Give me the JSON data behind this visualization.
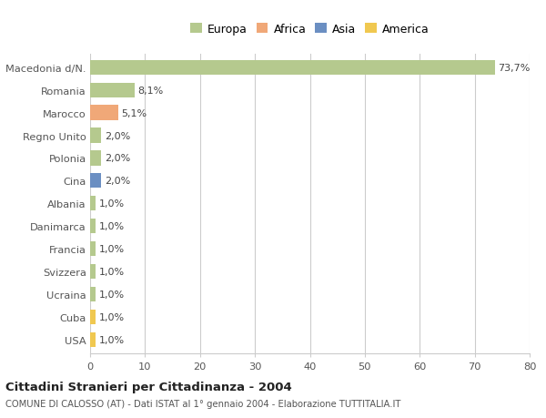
{
  "countries": [
    "Macedonia d/N.",
    "Romania",
    "Marocco",
    "Regno Unito",
    "Polonia",
    "Cina",
    "Albania",
    "Danimarca",
    "Francia",
    "Svizzera",
    "Ucraina",
    "Cuba",
    "USA"
  ],
  "values": [
    73.7,
    8.1,
    5.1,
    2.0,
    2.0,
    2.0,
    1.0,
    1.0,
    1.0,
    1.0,
    1.0,
    1.0,
    1.0
  ],
  "labels": [
    "73,7%",
    "8,1%",
    "5,1%",
    "2,0%",
    "2,0%",
    "2,0%",
    "1,0%",
    "1,0%",
    "1,0%",
    "1,0%",
    "1,0%",
    "1,0%",
    "1,0%"
  ],
  "colors": [
    "#b5c98e",
    "#b5c98e",
    "#f0a878",
    "#b5c98e",
    "#b5c98e",
    "#6b8fc2",
    "#b5c98e",
    "#b5c98e",
    "#b5c98e",
    "#b5c98e",
    "#b5c98e",
    "#f0c850",
    "#f0c850"
  ],
  "legend_labels": [
    "Europa",
    "Africa",
    "Asia",
    "America"
  ],
  "legend_colors": [
    "#b5c98e",
    "#f0a878",
    "#6b8fc2",
    "#f0c850"
  ],
  "title": "Cittadini Stranieri per Cittadinanza - 2004",
  "subtitle": "COMUNE DI CALOSSO (AT) - Dati ISTAT al 1° gennaio 2004 - Elaborazione TUTTITALIA.IT",
  "xlim": [
    0,
    80
  ],
  "xticks": [
    0,
    10,
    20,
    30,
    40,
    50,
    60,
    70,
    80
  ],
  "background_color": "#ffffff",
  "grid_color": "#cccccc"
}
